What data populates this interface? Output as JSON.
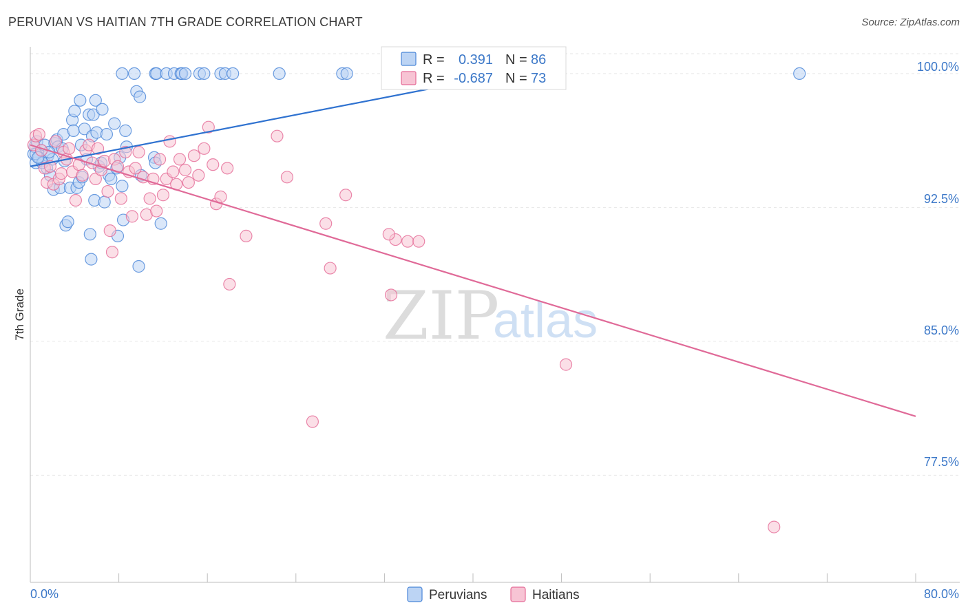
{
  "title": "PERUVIAN VS HAITIAN 7TH GRADE CORRELATION CHART",
  "source": "Source: ZipAtlas.com",
  "watermark": {
    "zip": "ZIP",
    "atlas": "atlas"
  },
  "colors": {
    "blue": "#4a86d8",
    "blue_fill": "#bcd4f4",
    "pink": "#e56a96",
    "pink_fill": "#f7c4d4",
    "label_blue": "#3c78c8"
  },
  "legend": {
    "rows": [
      {
        "r_label": "R =",
        "r_value": "0.391",
        "n_label": "N =",
        "n_value": "86"
      },
      {
        "r_label": "R =",
        "r_value": "-0.687",
        "n_label": "N =",
        "n_value": "73"
      }
    ]
  },
  "chart_data": {
    "type": "scatter",
    "title": "PERUVIAN VS HAITIAN 7TH GRADE CORRELATION CHART",
    "xlabel": "",
    "ylabel": "7th Grade",
    "xlim": [
      0,
      80
    ],
    "ylim": [
      71.5,
      101.5
    ],
    "x_tick_labels": [
      "0.0%",
      "80.0%"
    ],
    "y_ticks": [
      100.0,
      92.5,
      85.0,
      77.5
    ],
    "y_tick_labels": [
      "100.0%",
      "92.5%",
      "85.0%",
      "77.5%"
    ],
    "series": [
      {
        "name": "Peruvians",
        "R": 0.391,
        "N": 86,
        "trend": {
          "x": [
            0,
            44
          ],
          "y": [
            94.8,
            100.1
          ]
        },
        "points": [
          [
            0.3,
            95.5
          ],
          [
            0.4,
            95.9
          ],
          [
            0.5,
            95.0
          ],
          [
            0.6,
            96.2
          ],
          [
            0.8,
            95.3
          ],
          [
            1.0,
            95.7
          ],
          [
            1.2,
            95.1
          ],
          [
            1.3,
            96.0
          ],
          [
            1.5,
            94.7
          ],
          [
            1.6,
            95.4
          ],
          [
            1.8,
            94.3
          ],
          [
            2.0,
            95.2
          ],
          [
            2.1,
            93.5
          ],
          [
            2.2,
            96.1
          ],
          [
            2.4,
            96.3
          ],
          [
            2.5,
            95.9
          ],
          [
            2.7,
            93.6
          ],
          [
            3.0,
            96.6
          ],
          [
            3.1,
            95.1
          ],
          [
            3.2,
            91.5
          ],
          [
            3.4,
            91.7
          ],
          [
            3.6,
            93.6
          ],
          [
            3.8,
            97.4
          ],
          [
            3.9,
            96.8
          ],
          [
            4.0,
            97.9
          ],
          [
            4.2,
            93.6
          ],
          [
            4.4,
            93.9
          ],
          [
            4.5,
            98.5
          ],
          [
            4.6,
            96.0
          ],
          [
            4.7,
            94.2
          ],
          [
            4.9,
            96.9
          ],
          [
            5.1,
            95.2
          ],
          [
            5.3,
            97.7
          ],
          [
            5.4,
            91.0
          ],
          [
            5.5,
            89.6
          ],
          [
            5.6,
            96.5
          ],
          [
            5.7,
            97.7
          ],
          [
            5.8,
            92.9
          ],
          [
            5.9,
            98.5
          ],
          [
            6.0,
            96.7
          ],
          [
            6.2,
            94.8
          ],
          [
            6.4,
            95.0
          ],
          [
            6.5,
            98.0
          ],
          [
            6.7,
            92.8
          ],
          [
            6.9,
            96.6
          ],
          [
            7.1,
            94.3
          ],
          [
            7.3,
            94.1
          ],
          [
            7.6,
            97.2
          ],
          [
            7.8,
            94.7
          ],
          [
            7.9,
            90.9
          ],
          [
            8.1,
            95.3
          ],
          [
            8.3,
            93.7
          ],
          [
            8.4,
            91.8
          ],
          [
            8.6,
            96.8
          ],
          [
            8.7,
            95.9
          ],
          [
            9.8,
            89.2
          ],
          [
            9.6,
            99.0
          ],
          [
            9.9,
            98.7
          ],
          [
            10.0,
            94.3
          ],
          [
            11.2,
            95.3
          ],
          [
            11.3,
            95.0
          ],
          [
            11.8,
            91.6
          ],
          [
            8.3,
            100.0
          ],
          [
            9.4,
            100.0
          ],
          [
            11.3,
            100.0
          ],
          [
            11.4,
            100.0
          ],
          [
            12.3,
            100.0
          ],
          [
            13.0,
            100.0
          ],
          [
            13.6,
            100.0
          ],
          [
            13.7,
            100.0
          ],
          [
            14.0,
            100.0
          ],
          [
            15.3,
            100.0
          ],
          [
            15.7,
            100.0
          ],
          [
            17.2,
            100.0
          ],
          [
            17.6,
            100.0
          ],
          [
            18.3,
            100.0
          ],
          [
            22.5,
            100.0
          ],
          [
            28.2,
            100.0
          ],
          [
            28.6,
            100.0
          ],
          [
            69.5,
            100.0
          ],
          [
            0.5,
            95.5
          ],
          [
            1.1,
            95.0
          ],
          [
            2.9,
            95.8
          ],
          [
            1.7,
            95.6
          ],
          [
            0.7,
            95.3
          ]
        ]
      },
      {
        "name": "Haitians",
        "R": -0.687,
        "N": 73,
        "trend": {
          "x": [
            0,
            80
          ],
          "y": [
            96.0,
            80.8
          ]
        },
        "points": [
          [
            0.3,
            96.0
          ],
          [
            0.5,
            96.5
          ],
          [
            0.8,
            96.6
          ],
          [
            1.0,
            95.7
          ],
          [
            1.3,
            94.7
          ],
          [
            1.5,
            93.9
          ],
          [
            1.8,
            94.8
          ],
          [
            2.1,
            93.8
          ],
          [
            2.3,
            96.2
          ],
          [
            2.6,
            94.1
          ],
          [
            2.8,
            94.4
          ],
          [
            3.0,
            95.6
          ],
          [
            3.3,
            95.2
          ],
          [
            3.5,
            95.8
          ],
          [
            3.8,
            94.5
          ],
          [
            4.1,
            92.9
          ],
          [
            4.4,
            94.9
          ],
          [
            4.7,
            94.3
          ],
          [
            5.0,
            95.7
          ],
          [
            5.3,
            96.0
          ],
          [
            5.6,
            95.0
          ],
          [
            5.9,
            94.1
          ],
          [
            6.1,
            95.8
          ],
          [
            6.4,
            94.6
          ],
          [
            6.7,
            95.1
          ],
          [
            7.0,
            93.4
          ],
          [
            7.2,
            91.2
          ],
          [
            7.4,
            90.0
          ],
          [
            7.6,
            95.2
          ],
          [
            7.9,
            94.8
          ],
          [
            8.2,
            93.0
          ],
          [
            8.6,
            95.6
          ],
          [
            8.9,
            94.5
          ],
          [
            9.2,
            92.0
          ],
          [
            9.5,
            94.7
          ],
          [
            9.8,
            95.6
          ],
          [
            10.2,
            94.2
          ],
          [
            10.5,
            92.1
          ],
          [
            10.8,
            93.0
          ],
          [
            11.1,
            94.1
          ],
          [
            11.4,
            92.3
          ],
          [
            11.7,
            95.2
          ],
          [
            12.0,
            93.2
          ],
          [
            12.3,
            94.1
          ],
          [
            12.6,
            96.2
          ],
          [
            12.9,
            94.5
          ],
          [
            13.2,
            93.8
          ],
          [
            13.5,
            95.2
          ],
          [
            14.0,
            94.6
          ],
          [
            14.3,
            93.9
          ],
          [
            14.8,
            95.4
          ],
          [
            15.2,
            94.3
          ],
          [
            15.7,
            95.8
          ],
          [
            16.1,
            97.0
          ],
          [
            16.5,
            94.9
          ],
          [
            16.8,
            92.7
          ],
          [
            17.2,
            93.1
          ],
          [
            17.8,
            94.7
          ],
          [
            18.0,
            88.2
          ],
          [
            19.5,
            90.9
          ],
          [
            22.3,
            96.5
          ],
          [
            23.2,
            94.2
          ],
          [
            25.5,
            80.5
          ],
          [
            26.7,
            91.6
          ],
          [
            27.1,
            89.1
          ],
          [
            28.5,
            93.2
          ],
          [
            32.6,
            87.6
          ],
          [
            33.0,
            90.7
          ],
          [
            34.1,
            90.6
          ],
          [
            35.1,
            90.6
          ],
          [
            48.4,
            83.7
          ],
          [
            67.2,
            74.6
          ],
          [
            32.4,
            91.0
          ]
        ]
      }
    ]
  },
  "bottom_legend": [
    "Peruvians",
    "Haitians"
  ]
}
